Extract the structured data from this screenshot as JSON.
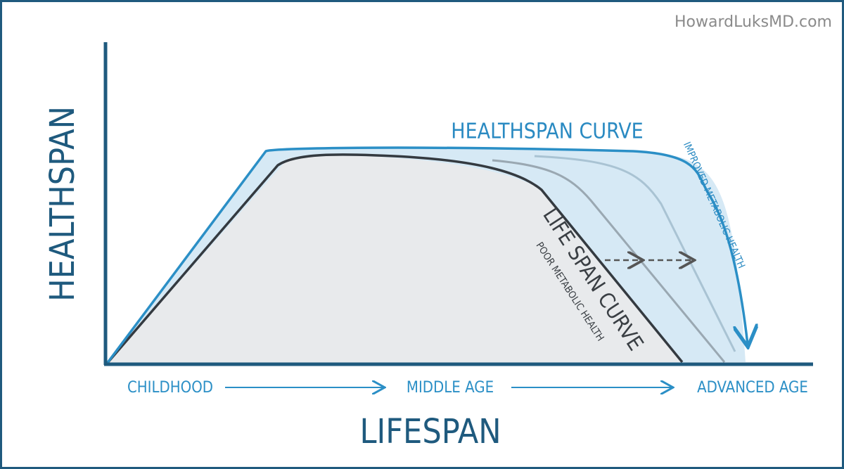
{
  "watermark": "HowardLuksMD.com",
  "y_axis_label": "HEALTHSPAN",
  "x_axis_label": "LIFESPAN",
  "stages": [
    "CHILDHOOD",
    "MIDDLE AGE",
    "ADVANCED AGE"
  ],
  "healthspan_curve": {
    "label": "HEALTHSPAN CURVE",
    "note": "IMPROVED METABOLIC HEALTH"
  },
  "lifespan_curve": {
    "label": "LIFE SPAN CURVE",
    "note": "POOR METABOLIC HEALTH"
  }
}
